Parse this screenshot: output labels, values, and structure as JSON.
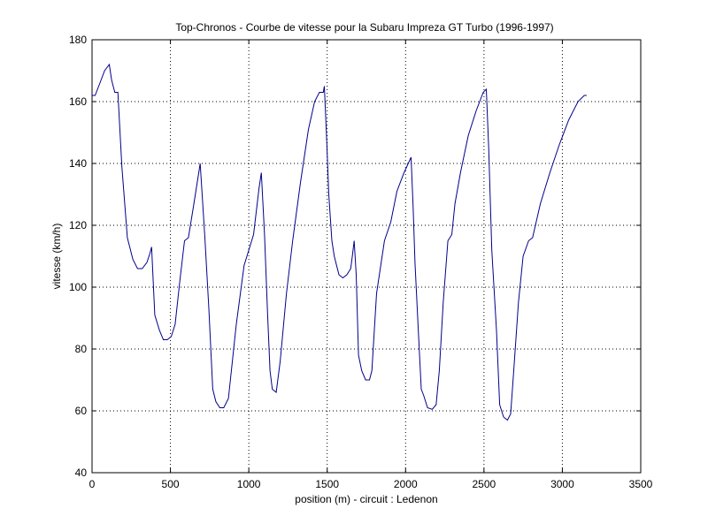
{
  "chart_data": {
    "type": "line",
    "title": "Top-Chronos - Courbe de vitesse pour la Subaru Impreza GT Turbo (1996-1997)",
    "xlabel": "position (m) - circuit : Ledenon",
    "ylabel": "vitesse (km/h)",
    "xlim": [
      0,
      3500
    ],
    "ylim": [
      40,
      180
    ],
    "xticks": [
      0,
      500,
      1000,
      1500,
      2000,
      2500,
      3000,
      3500
    ],
    "yticks": [
      40,
      60,
      80,
      100,
      120,
      140,
      160,
      180
    ],
    "grid": true,
    "line_color": "#00008b",
    "series": [
      {
        "x": [
          0,
          20,
          50,
          80,
          110,
          125,
          145,
          165,
          190,
          225,
          260,
          290,
          320,
          350,
          370,
          380,
          400,
          430,
          455,
          480,
          505,
          530,
          560,
          590,
          615,
          650,
          690,
          720,
          745,
          770,
          790,
          815,
          840,
          870,
          920,
          970,
          1030,
          1065,
          1080,
          1100,
          1120,
          1135,
          1150,
          1175,
          1200,
          1240,
          1280,
          1330,
          1380,
          1420,
          1450,
          1475,
          1482,
          1495,
          1510,
          1530,
          1545,
          1575,
          1600,
          1625,
          1650,
          1660,
          1672,
          1685,
          1700,
          1720,
          1745,
          1770,
          1785,
          1815,
          1865,
          1905,
          1945,
          1990,
          2035,
          2048,
          2060,
          2080,
          2100,
          2115,
          2140,
          2170,
          2195,
          2215,
          2240,
          2270,
          2295,
          2315,
          2350,
          2400,
          2450,
          2495,
          2515,
          2530,
          2550,
          2580,
          2600,
          2625,
          2650,
          2670,
          2690,
          2720,
          2750,
          2785,
          2810,
          2860,
          2920,
          2980,
          3040,
          3100,
          3140,
          3155
        ],
        "y": [
          162,
          162,
          166,
          170,
          172,
          167,
          163,
          163,
          139,
          116,
          109,
          106,
          106,
          108,
          111,
          113,
          91,
          86,
          83,
          83,
          84,
          88,
          102,
          115,
          116,
          127,
          140,
          116,
          93,
          67,
          63,
          61,
          61,
          64,
          88,
          107,
          117,
          132,
          137,
          117,
          91,
          73,
          67,
          66,
          76,
          98,
          115,
          134,
          151,
          160,
          163,
          163,
          165,
          150,
          130,
          115,
          110,
          104,
          103,
          104,
          106,
          110,
          115,
          104,
          78,
          73,
          70,
          70,
          73,
          98,
          115,
          121,
          131,
          137,
          142,
          126,
          108,
          87,
          67,
          65,
          61,
          60.5,
          62,
          73,
          95,
          115,
          117,
          127,
          137,
          149,
          157,
          163,
          164,
          145,
          112,
          86,
          62,
          58,
          57,
          59,
          73,
          95,
          110,
          115,
          116,
          127,
          137,
          146,
          154,
          160,
          162,
          162
        ]
      }
    ]
  }
}
